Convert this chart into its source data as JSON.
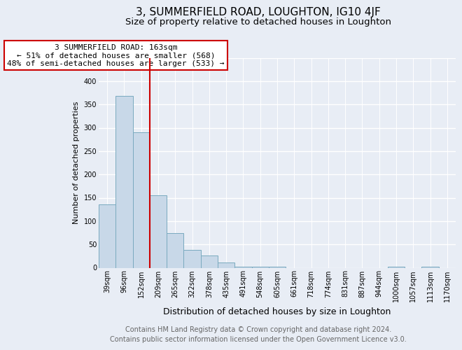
{
  "title": "3, SUMMERFIELD ROAD, LOUGHTON, IG10 4JF",
  "subtitle": "Size of property relative to detached houses in Loughton",
  "xlabel": "Distribution of detached houses by size in Loughton",
  "ylabel": "Number of detached properties",
  "footer_lines": [
    "Contains HM Land Registry data © Crown copyright and database right 2024.",
    "Contains public sector information licensed under the Open Government Licence v3.0."
  ],
  "bin_labels": [
    "39sqm",
    "96sqm",
    "152sqm",
    "209sqm",
    "265sqm",
    "322sqm",
    "378sqm",
    "435sqm",
    "491sqm",
    "548sqm",
    "605sqm",
    "661sqm",
    "718sqm",
    "774sqm",
    "831sqm",
    "887sqm",
    "944sqm",
    "1000sqm",
    "1057sqm",
    "1113sqm",
    "1170sqm"
  ],
  "bar_values": [
    136,
    368,
    291,
    156,
    75,
    38,
    26,
    11,
    3,
    3,
    3,
    0,
    0,
    0,
    0,
    0,
    0,
    2,
    0,
    2,
    0
  ],
  "bar_color": "#c8d8e8",
  "bar_edge_color": "#7aaabf",
  "vline_bin_index": 2,
  "vline_color": "#cc0000",
  "annotation_text": "3 SUMMERFIELD ROAD: 163sqm\n← 51% of detached houses are smaller (568)\n48% of semi-detached houses are larger (533) →",
  "annotation_box_color": "#ffffff",
  "annotation_box_edge": "#cc0000",
  "ylim": [
    0,
    450
  ],
  "yticks": [
    0,
    50,
    100,
    150,
    200,
    250,
    300,
    350,
    400,
    450
  ],
  "outer_bg_color": "#e8edf5",
  "plot_bg_color": "#e8edf5",
  "grid_color": "#ffffff",
  "title_fontsize": 11,
  "subtitle_fontsize": 9.5,
  "xlabel_fontsize": 9,
  "ylabel_fontsize": 8,
  "tick_fontsize": 7,
  "annot_fontsize": 8,
  "footer_fontsize": 7
}
